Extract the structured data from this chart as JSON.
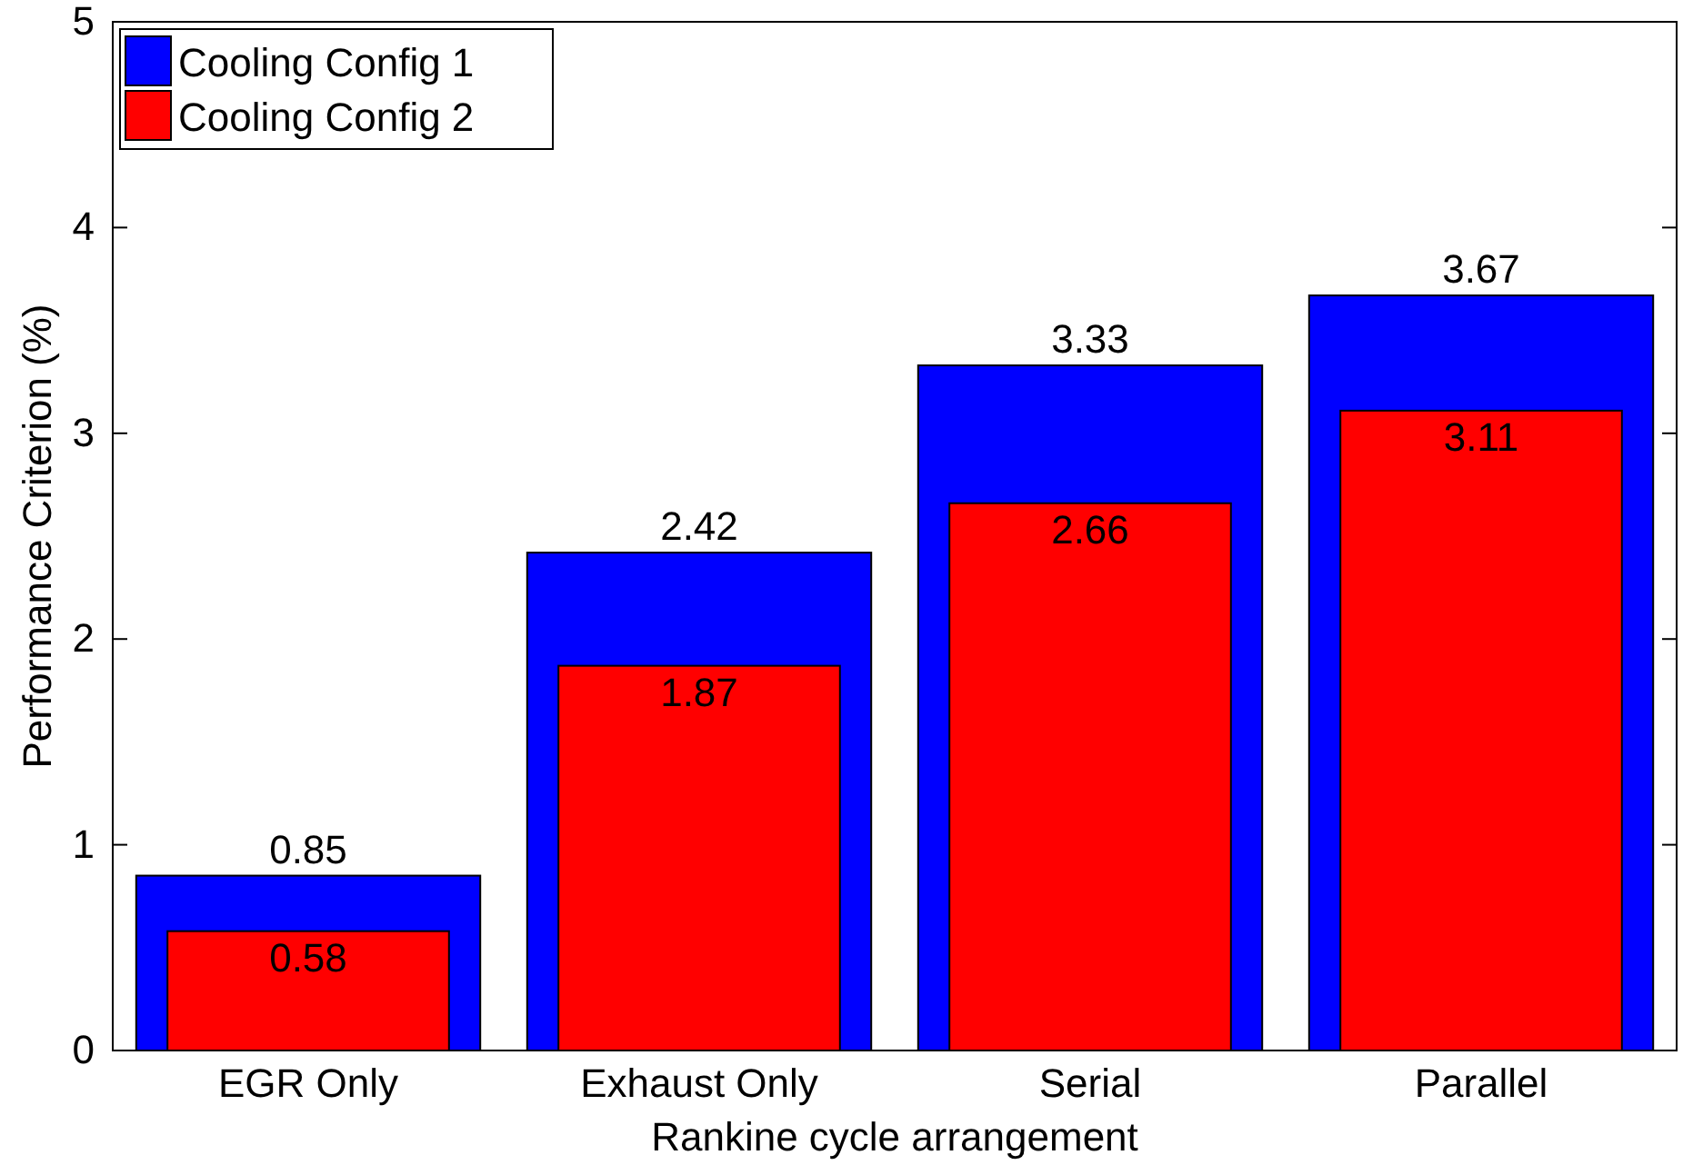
{
  "chart_data": {
    "type": "bar",
    "xlabel": "Rankine cycle arrangement",
    "ylabel": "Performance Criterion (%)",
    "categories": [
      "EGR Only",
      "Exhaust Only",
      "Serial",
      "Parallel"
    ],
    "series": [
      {
        "name": "Cooling Config 1",
        "color": "#0000ff",
        "values": [
          0.85,
          2.42,
          3.33,
          3.67
        ]
      },
      {
        "name": "Cooling Config 2",
        "color": "#ff0000",
        "values": [
          0.58,
          1.87,
          2.66,
          3.11
        ]
      }
    ],
    "ylim": [
      0,
      5
    ],
    "yticks": [
      0,
      1,
      2,
      3,
      4,
      5
    ],
    "data_labels": true,
    "legend": "top left"
  }
}
